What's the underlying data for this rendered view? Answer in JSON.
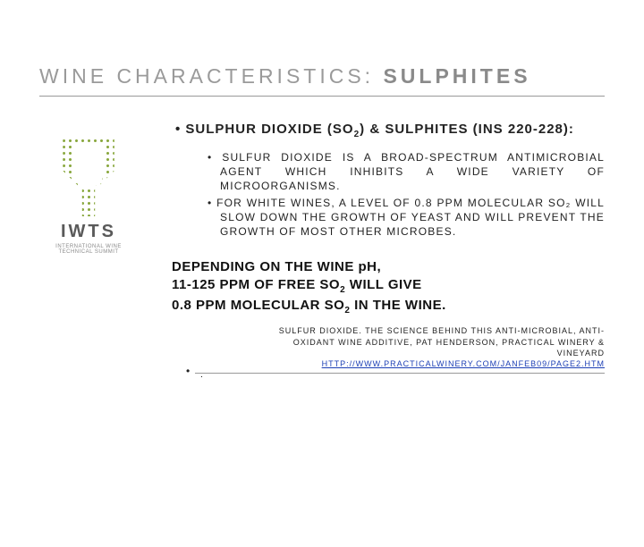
{
  "title_prefix": "WINE CHARACTERISTICS:",
  "title_bold": "SULPHITES",
  "logo": {
    "name": "IWTS",
    "sub": "INTERNATIONAL WINE TECHNICAL SUMMIT"
  },
  "heading_pre": "SULPHUR DIOXIDE (SO",
  "heading_sub": "2",
  "heading_post": ") & SULPHITES (INS 220-228):",
  "bullets": [
    "SULFUR DIOXIDE IS A BROAD-SPECTRUM ANTIMICROBIAL AGENT WHICH INHIBITS A WIDE VARIETY OF MICROORGANISMS.",
    "FOR WHITE WINES, A LEVEL OF 0.8 PPM MOLECULAR SO₂ WILL SLOW DOWN THE GROWTH OF YEAST AND WILL PREVENT THE GROWTH OF MOST OTHER MICROBES."
  ],
  "conclude_l1": "DEPENDING ON THE WINE pH,",
  "conclude_l2_pre": "11-125 PPM OF FREE SO",
  "conclude_l2_post": " WILL GIVE",
  "conclude_l3_pre": "0.8 PPM MOLECULAR SO",
  "conclude_l3_post": " IN THE WINE.",
  "cite_l1": "SULFUR DIOXIDE. THE SCIENCE BEHIND THIS ANTI-MICROBIAL, ANTI-",
  "cite_l2": "OXIDANT WINE ADDITIVE, PAT HENDERSON, PRACTICAL WINERY &",
  "cite_l3": "VINEYARD",
  "cite_link": "HTTP://WWW.PRACTICALWINERY.COM/JANFEB09/PAGE2.HTM",
  "colors": {
    "muted": "#9a9a9a",
    "accent": "#8aa83f",
    "link": "#1c3fb5"
  }
}
